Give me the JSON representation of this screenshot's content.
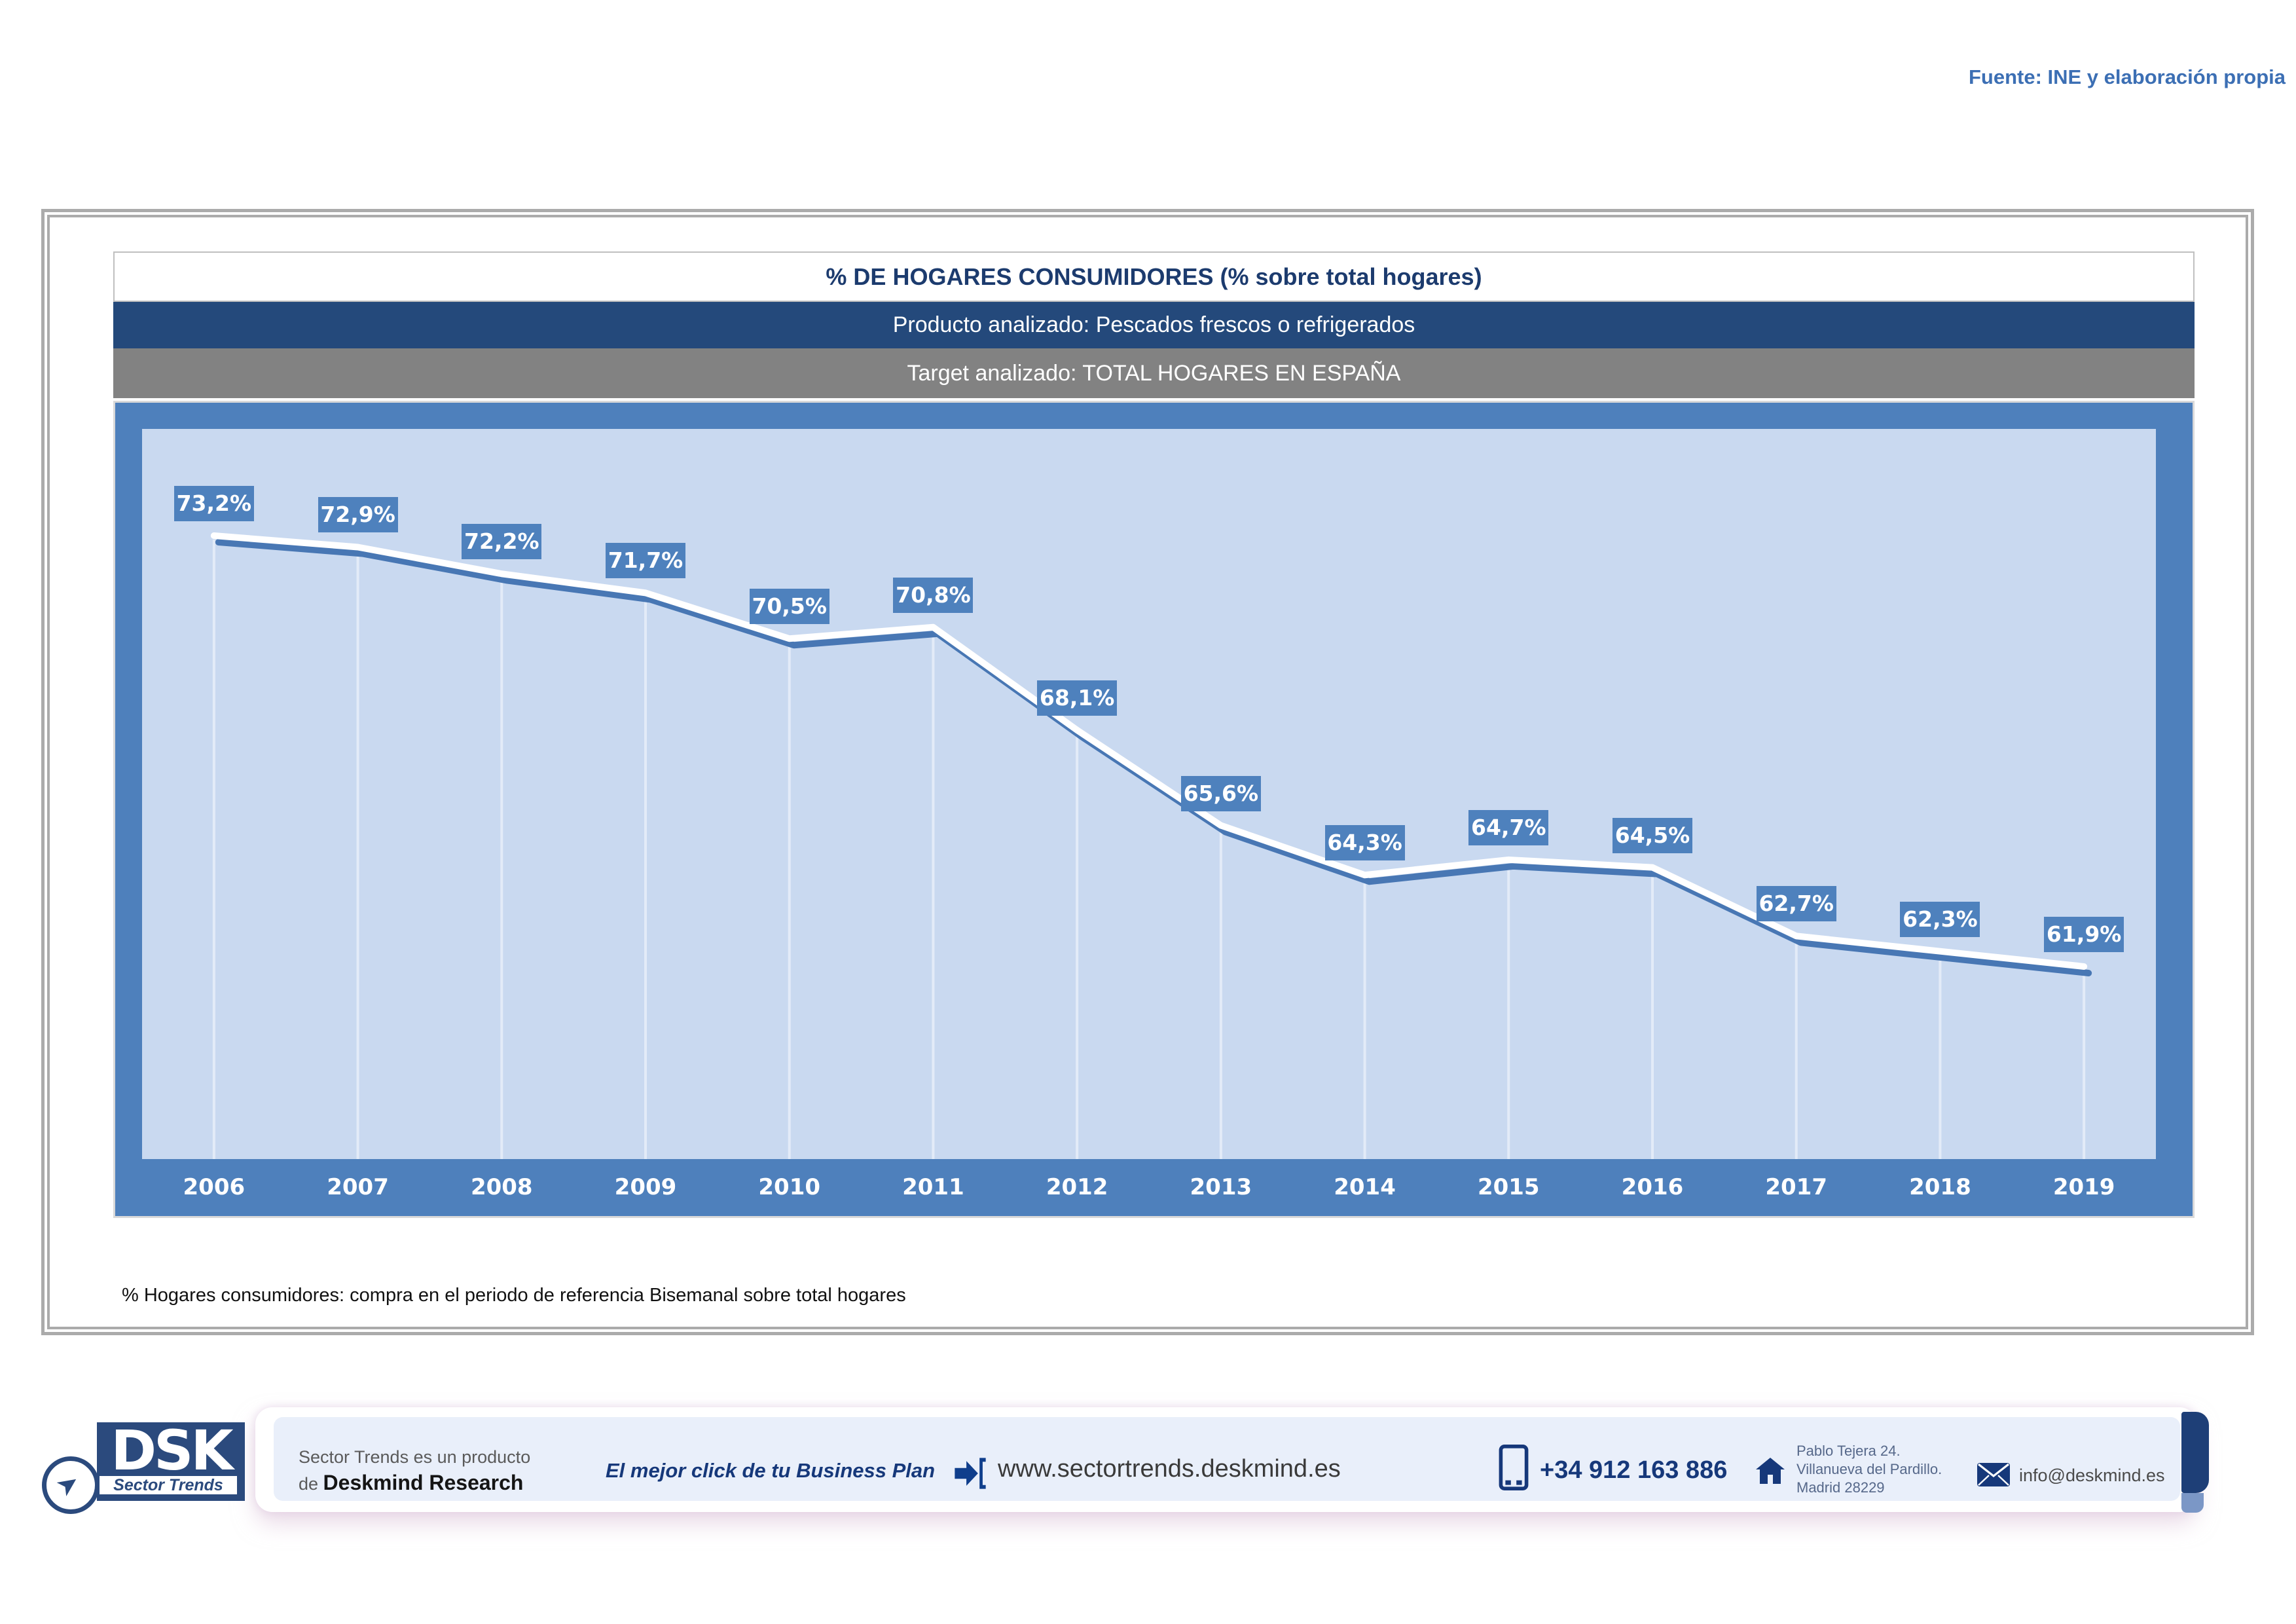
{
  "source_note": "Fuente: INE y elaboración propia",
  "header": {
    "title": "% DE HOGARES CONSUMIDORES (% sobre total hogares)",
    "producto": "Producto analizado: Pescados frescos o refrigerados",
    "target": "Target analizado: TOTAL HOGARES EN ESPAÑA"
  },
  "chart_data": {
    "type": "line",
    "title": "% DE HOGARES CONSUMIDORES (% sobre total hogares)",
    "categories": [
      "2006",
      "2007",
      "2008",
      "2009",
      "2010",
      "2011",
      "2012",
      "2013",
      "2014",
      "2015",
      "2016",
      "2017",
      "2018",
      "2019"
    ],
    "values": [
      73.2,
      72.9,
      72.2,
      71.7,
      70.5,
      70.8,
      68.1,
      65.6,
      64.3,
      64.7,
      64.5,
      62.7,
      62.3,
      61.9
    ],
    "value_labels": [
      "73,2%",
      "72,9%",
      "72,2%",
      "71,7%",
      "70,5%",
      "70,8%",
      "68,1%",
      "65,6%",
      "64,3%",
      "64,7%",
      "64,5%",
      "62,7%",
      "62,3%",
      "61,9%"
    ],
    "ylim": [
      56.85,
      76.0
    ],
    "grid": "vertical-drop-lines",
    "legend": "none",
    "colors": {
      "band_bg": "#4E80BC",
      "plot_bg": "#C9D9F0",
      "line": "#FFFFFF",
      "line_shadow": "#4877B4",
      "drop_line": "#E6EEF9",
      "label_box": "#4E81BD",
      "label_text": "#FFFFFF",
      "header_dark_blue": "#24497B",
      "header_gray": "#828282",
      "title_navy": "#1C3B6E"
    }
  },
  "footnote": "% Hogares consumidores: compra en el periodo de referencia Bisemanal sobre total hogares",
  "footer": {
    "logo": {
      "dsk": "DSK",
      "sector": "Sector Trends",
      "plane_icon": "➤"
    },
    "brand_line1": "Sector Trends es un producto",
    "brand_line2_prefix": "de ",
    "brand_line2_bold": "Deskmind Research",
    "tagline": "El mejor click de tu Business Plan",
    "website": "www.sectortrends.deskmind.es",
    "phone": "+34 912 163 886",
    "address_line1": "Pablo Tejera 24.",
    "address_line2": "Villanueva del Pardillo.",
    "address_line3": "Madrid 28229",
    "email": "info@deskmind.es"
  }
}
